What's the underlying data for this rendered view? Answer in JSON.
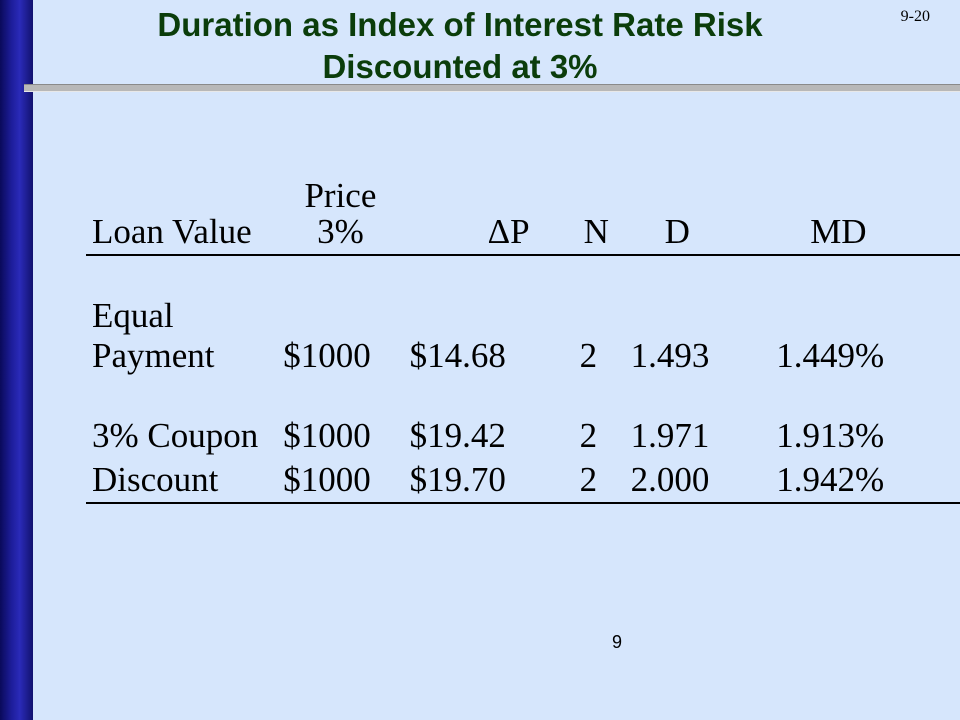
{
  "slide": {
    "title_line1": "Duration as Index of Interest Rate Risk",
    "title_line2": "Discounted at 3%",
    "slide_id": "9-20",
    "page_number": "9"
  },
  "table": {
    "headers": {
      "loan_value": "Loan Value",
      "price_line1": "Price",
      "price_line2": "3%",
      "delta_p": "ΔP",
      "n": "N",
      "d": "D",
      "md": "MD"
    },
    "rows": [
      {
        "loan_line1": "Equal",
        "loan_line2": "Payment",
        "price": "$1000",
        "delta_p": "$14.68",
        "n": "2",
        "d": "1.493",
        "md": "1.449%"
      },
      {
        "loan_line1": "3% Coupon",
        "loan_line2": "",
        "price": "$1000",
        "delta_p": "$19.42",
        "n": "2",
        "d": "1.971",
        "md": "1.913%"
      },
      {
        "loan_line1": "Discount",
        "loan_line2": "",
        "price": "$1000",
        "delta_p": "$19.70",
        "n": "2",
        "d": "2.000",
        "md": "1.942%"
      }
    ]
  }
}
